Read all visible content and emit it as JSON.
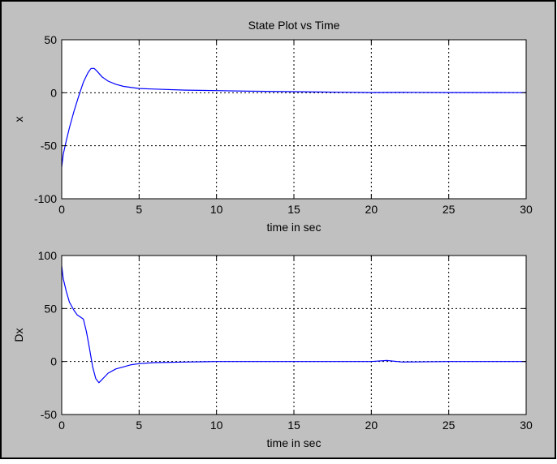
{
  "figure": {
    "background": "#c0c0c0",
    "border_color": "#000000",
    "axes_background": "#ffffff",
    "line_color": "#0000ff",
    "grid_color": "#000000"
  },
  "chart_data": [
    {
      "type": "line",
      "title": "State Plot vs Time",
      "xlabel": "time in sec",
      "ylabel": "x",
      "xlim": [
        0,
        30
      ],
      "ylim": [
        -100,
        50
      ],
      "xticks": [
        "0",
        "5",
        "10",
        "15",
        "20",
        "25",
        "30"
      ],
      "yticks": [
        "-100",
        "-50",
        "0",
        "50"
      ],
      "grid": true,
      "series": [
        {
          "color": "#0000ff",
          "x": [
            0,
            0.1,
            0.3,
            0.5,
            0.8,
            1.1,
            1.4,
            1.7,
            1.9,
            2.1,
            2.3,
            2.6,
            3.0,
            3.5,
            4.0,
            5.0,
            6.0,
            8.0,
            10.0,
            12.0,
            15.0,
            18.0,
            20.0,
            22.0,
            25.0,
            28.0,
            30.0
          ],
          "y": [
            -70,
            -58,
            -45,
            -33,
            -17,
            -3,
            10,
            19,
            23,
            23,
            20,
            15,
            11,
            8,
            6,
            4,
            3.5,
            2.5,
            2,
            1.5,
            1,
            0.5,
            0.2,
            0.3,
            0.2,
            0.2,
            0.1
          ]
        }
      ]
    },
    {
      "type": "line",
      "title": "",
      "xlabel": "time in sec",
      "ylabel": "Dx",
      "xlim": [
        0,
        30
      ],
      "ylim": [
        -50,
        100
      ],
      "xticks": [
        "0",
        "5",
        "10",
        "15",
        "20",
        "25",
        "30"
      ],
      "yticks": [
        "-50",
        "0",
        "50",
        "100"
      ],
      "grid": true,
      "series": [
        {
          "color": "#0000ff",
          "x": [
            0,
            0.1,
            0.3,
            0.5,
            0.8,
            1.0,
            1.2,
            1.4,
            1.6,
            1.8,
            2.0,
            2.2,
            2.4,
            2.6,
            2.8,
            3.0,
            3.5,
            4.0,
            4.5,
            5.0,
            6.0,
            8.0,
            10.0,
            15.0,
            20.0,
            21.0,
            22.0,
            25.0,
            30.0
          ],
          "y": [
            90,
            78,
            66,
            56,
            48,
            44,
            42,
            40,
            28,
            12,
            -5,
            -16,
            -20,
            -17,
            -14,
            -11,
            -7,
            -5,
            -3,
            -2,
            -1,
            -0.5,
            0,
            0,
            0,
            1,
            -0.5,
            0,
            0
          ]
        }
      ]
    }
  ]
}
